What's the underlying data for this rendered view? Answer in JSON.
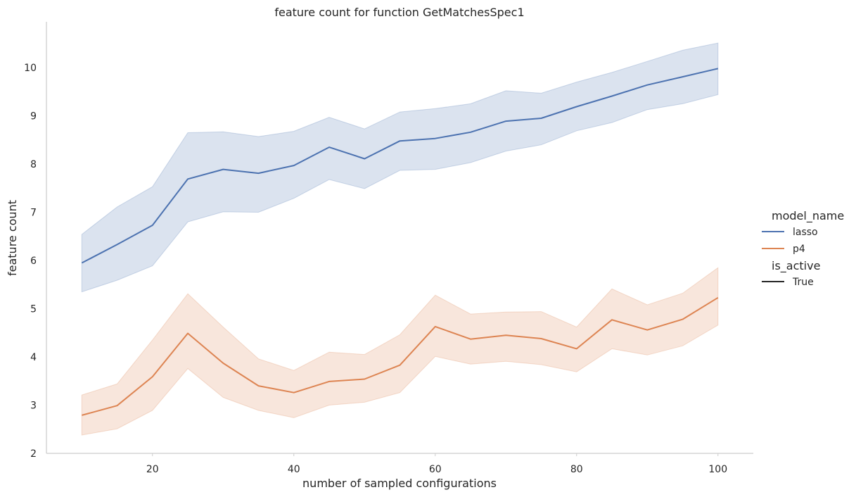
{
  "chart_data": {
    "type": "line",
    "title": "feature count for function GetMatchesSpec1",
    "xlabel": "number of sampled configurations",
    "ylabel": "feature count",
    "xlim": [
      5,
      105
    ],
    "ylim": [
      2,
      10.95
    ],
    "xticks": [
      20,
      40,
      60,
      80,
      100
    ],
    "yticks": [
      2,
      3,
      4,
      5,
      6,
      7,
      8,
      9,
      10
    ],
    "grid": false,
    "legend": {
      "placement": "right",
      "hue_title": "model_name",
      "style_title": "is_active",
      "style_entries": [
        {
          "label": "True",
          "color": "#262626"
        }
      ]
    },
    "x": [
      10,
      15,
      20,
      25,
      30,
      35,
      40,
      45,
      50,
      55,
      60,
      65,
      70,
      75,
      80,
      85,
      90,
      95,
      100
    ],
    "series": [
      {
        "name": "lasso",
        "color": "#4c72b0",
        "values": [
          5.95,
          6.33,
          6.73,
          7.69,
          7.89,
          7.81,
          7.97,
          8.35,
          8.11,
          8.48,
          8.53,
          8.66,
          8.89,
          8.95,
          9.19,
          9.41,
          9.64,
          9.81,
          9.98
        ],
        "ci_low": [
          5.35,
          5.59,
          5.89,
          6.8,
          7.01,
          7.0,
          7.29,
          7.68,
          7.49,
          7.87,
          7.89,
          8.03,
          8.27,
          8.4,
          8.69,
          8.86,
          9.13,
          9.25,
          9.44
        ],
        "ci_high": [
          6.54,
          7.11,
          7.53,
          8.65,
          8.67,
          8.57,
          8.68,
          8.97,
          8.73,
          9.08,
          9.15,
          9.25,
          9.52,
          9.47,
          9.7,
          9.9,
          10.13,
          10.36,
          10.51
        ]
      },
      {
        "name": "p4",
        "color": "#dd8452",
        "values": [
          2.79,
          2.99,
          3.59,
          4.49,
          3.87,
          3.4,
          3.26,
          3.49,
          3.54,
          3.83,
          4.63,
          4.37,
          4.45,
          4.38,
          4.17,
          4.77,
          4.56,
          4.78,
          5.23
        ],
        "ci_low": [
          2.38,
          2.51,
          2.89,
          3.76,
          3.16,
          2.89,
          2.74,
          3.0,
          3.06,
          3.26,
          4.01,
          3.85,
          3.91,
          3.84,
          3.69,
          4.17,
          4.04,
          4.23,
          4.66
        ],
        "ci_high": [
          3.21,
          3.44,
          4.35,
          5.31,
          4.62,
          3.96,
          3.72,
          4.1,
          4.05,
          4.46,
          5.28,
          4.89,
          4.93,
          4.94,
          4.62,
          5.41,
          5.08,
          5.32,
          5.85
        ]
      }
    ]
  }
}
